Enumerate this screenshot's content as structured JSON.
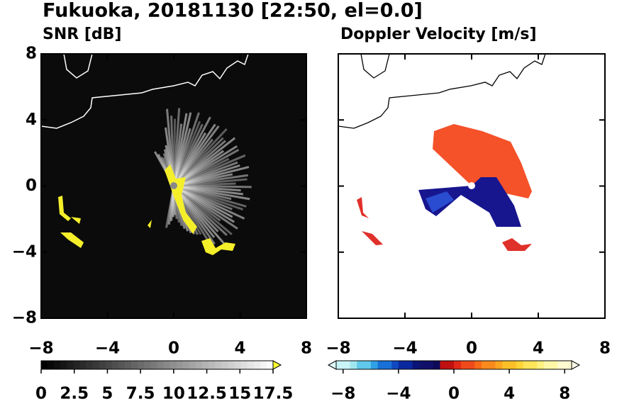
{
  "title": "Fukuoka, 20181130 [22:50, el=0.0]",
  "chart_data": [
    {
      "type": "heatmap",
      "title": "SNR [dB]",
      "xlim": [
        -8,
        8
      ],
      "ylim": [
        -8,
        8
      ],
      "xticks": [
        {
          "value": -8,
          "label": "−8"
        },
        {
          "value": -4,
          "label": "−4"
        },
        0,
        4,
        8
      ],
      "yticks": [
        {
          "value": -8,
          "label": "−8"
        },
        {
          "value": -4,
          "label": "−4"
        },
        0,
        4,
        8
      ],
      "clim": [
        0,
        17.5
      ],
      "cticks": [
        0,
        2.5,
        5,
        7.5,
        10,
        12.5,
        15,
        17.5
      ]
    },
    {
      "type": "heatmap",
      "title": "Doppler Velocity [m/s]",
      "xlim": [
        -8,
        8
      ],
      "ylim": [
        -8,
        8
      ],
      "xticks": [
        {
          "value": -8,
          "label": "−8"
        },
        {
          "value": -4,
          "label": "−4"
        },
        0,
        4,
        8
      ],
      "clim": [
        -8.5,
        8.5
      ],
      "cticks": [
        {
          "value": -8,
          "label": "−8"
        },
        {
          "value": -4,
          "label": "−4"
        },
        0,
        4,
        8
      ]
    }
  ]
}
